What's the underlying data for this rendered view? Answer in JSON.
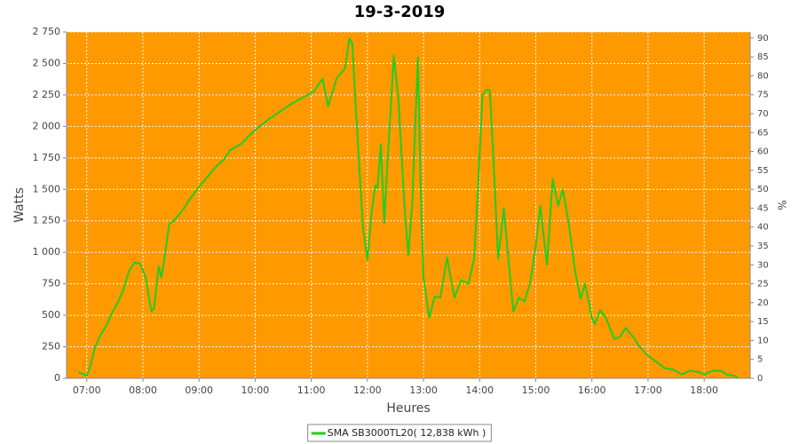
{
  "chart_data": {
    "type": "line",
    "title": "19-3-2019",
    "xlabel": "Heures",
    "ylabel": "Watts",
    "y2label": "%",
    "xlim": [
      6.64,
      18.82
    ],
    "xticks": [
      {
        "value": 7,
        "label": "07:00"
      },
      {
        "value": 8,
        "label": "08:00"
      },
      {
        "value": 9,
        "label": "09:00"
      },
      {
        "value": 10,
        "label": "10:00"
      },
      {
        "value": 11,
        "label": "11:00"
      },
      {
        "value": 12,
        "label": "12:00"
      },
      {
        "value": 13,
        "label": "13:00"
      },
      {
        "value": 14,
        "label": "14:00"
      },
      {
        "value": 15,
        "label": "15:00"
      },
      {
        "value": 16,
        "label": "16:00"
      },
      {
        "value": 17,
        "label": "17:00"
      },
      {
        "value": 18,
        "label": "18:00"
      }
    ],
    "ylim": [
      0,
      2750
    ],
    "yticks": [
      0,
      250,
      500,
      750,
      {
        "value": 1000,
        "label": "1 000"
      },
      {
        "value": 1250,
        "label": "1 250"
      },
      {
        "value": 1500,
        "label": "1 500"
      },
      {
        "value": 1750,
        "label": "1 750"
      },
      {
        "value": 2000,
        "label": "2 000"
      },
      {
        "value": 2250,
        "label": "2 250"
      },
      {
        "value": 2500,
        "label": "2 500"
      },
      {
        "value": 2750,
        "label": "2 750"
      }
    ],
    "y2lim": [
      0,
      91.6
    ],
    "y2ticks": [
      0,
      5,
      10,
      15,
      20,
      25,
      30,
      35,
      40,
      45,
      50,
      55,
      60,
      65,
      70,
      75,
      80,
      85,
      90
    ],
    "grid": true,
    "background": "#ff9900",
    "x": [
      6.85,
      6.95,
      7.0,
      7.05,
      7.15,
      7.25,
      7.35,
      7.45,
      7.55,
      7.65,
      7.75,
      7.85,
      7.95,
      8.05,
      8.15,
      8.2,
      8.28,
      8.33,
      8.4,
      8.47,
      8.55,
      8.7,
      8.85,
      9.0,
      9.15,
      9.3,
      9.45,
      9.55,
      9.75,
      9.9,
      10.05,
      10.25,
      10.45,
      10.65,
      10.85,
      11.05,
      11.2,
      11.3,
      11.45,
      11.6,
      11.68,
      11.73,
      11.8,
      11.92,
      12.0,
      12.07,
      12.14,
      12.18,
      12.24,
      12.3,
      12.37,
      12.47,
      12.55,
      12.67,
      12.73,
      12.8,
      12.9,
      12.95,
      13.0,
      13.1,
      13.2,
      13.3,
      13.42,
      13.55,
      13.67,
      13.8,
      13.9,
      13.97,
      14.05,
      14.12,
      14.18,
      14.25,
      14.33,
      14.43,
      14.5,
      14.6,
      14.7,
      14.8,
      14.9,
      15.0,
      15.08,
      15.2,
      15.3,
      15.4,
      15.48,
      15.58,
      15.7,
      15.8,
      15.88,
      16.0,
      16.05,
      16.15,
      16.25,
      16.4,
      16.5,
      16.6,
      16.75,
      16.85,
      17.0,
      17.15,
      17.3,
      17.45,
      17.6,
      17.75,
      17.9,
      18.0,
      18.15,
      18.3,
      18.4,
      18.55,
      18.6
    ],
    "series": [
      {
        "name": "SMA SB3000TL20( 12,838 kWh )",
        "color": "#22cc22",
        "values": [
          50,
          30,
          20,
          80,
          250,
          350,
          420,
          520,
          600,
          700,
          850,
          920,
          910,
          800,
          530,
          560,
          890,
          800,
          1000,
          1230,
          1250,
          1330,
          1430,
          1520,
          1600,
          1680,
          1740,
          1810,
          1860,
          1930,
          1990,
          2060,
          2120,
          2180,
          2230,
          2280,
          2380,
          2160,
          2380,
          2460,
          2700,
          2660,
          2100,
          1200,
          940,
          1300,
          1530,
          1510,
          1860,
          1230,
          1800,
          2560,
          2230,
          1300,
          980,
          1400,
          2550,
          1500,
          800,
          480,
          650,
          640,
          960,
          640,
          780,
          750,
          950,
          1500,
          2250,
          2290,
          2290,
          1700,
          950,
          1350,
          1000,
          530,
          640,
          610,
          760,
          1050,
          1370,
          900,
          1580,
          1370,
          1500,
          1250,
          850,
          630,
          750,
          480,
          430,
          540,
          480,
          310,
          330,
          400,
          320,
          250,
          180,
          130,
          80,
          70,
          30,
          60,
          50,
          30,
          60,
          60,
          30,
          20,
          0
        ]
      }
    ]
  }
}
